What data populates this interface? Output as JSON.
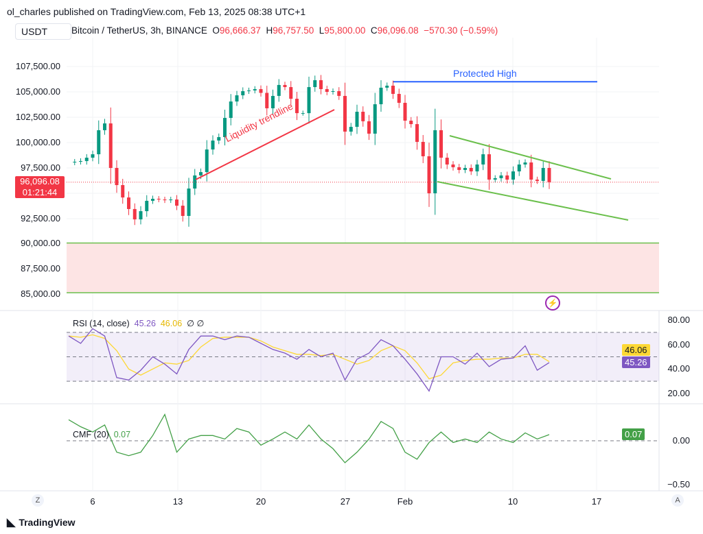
{
  "header": {
    "published": "ol_charles published on TradingView.com, Feb 13, 2025 08:38 UTC+1",
    "currency": "USDT",
    "symbol": "Bitcoin / TetherUS, 3h, BINANCE",
    "o_label": "O",
    "o": "96,666.37",
    "h_label": "H",
    "h": "96,757.50",
    "l_label": "L",
    "l": "95,800.00",
    "c_label": "C",
    "c": "96,096.08",
    "change": "−570.30 (−0.59%)"
  },
  "price_tag": {
    "price": "96,096.08",
    "countdown": "01:21:44"
  },
  "footer": {
    "logo": "TradingView",
    "z_button": "Z",
    "a_button": "A"
  },
  "colors": {
    "up": "#089981",
    "down": "#f23645",
    "rsi": "#7e57c2",
    "rsi_ma": "#fdd835",
    "cmf": "#43a047",
    "protected_high": "#2962ff",
    "trendline": "#f23645",
    "channel": "#6abf4b",
    "zone": "#fde4e4"
  },
  "chart_data": [
    {
      "type": "candlestick",
      "pane": "price",
      "ylim": [
        85000,
        110000
      ],
      "y_ticks": [
        "107,500.00",
        "105,000.00",
        "102,500.00",
        "100,000.00",
        "97,500.00",
        "92,500.00",
        "90,000.00",
        "87,500.00",
        "85,000.00"
      ],
      "x_ticks": [
        "6",
        "13",
        "20",
        "27",
        "Feb",
        "10",
        "17"
      ],
      "annotations": {
        "protected_high": {
          "label": "Protected High",
          "price": 106000
        },
        "trendline": {
          "label": "Liquidity trendline"
        },
        "support_zone": [
          85200,
          90100
        ],
        "channel": "descending"
      },
      "close": [
        [
          "2025-01-04 00:00",
          98040
        ],
        [
          "2025-01-04 12:00",
          98110
        ],
        [
          "2025-01-05 00:00",
          98180
        ],
        [
          "2025-01-05 12:00",
          98510
        ],
        [
          "2025-01-06 00:00",
          98850
        ],
        [
          "2025-01-06 12:00",
          101220
        ],
        [
          "2025-01-07 00:00",
          101890
        ],
        [
          "2025-01-07 12:00",
          97500
        ],
        [
          "2025-01-08 00:00",
          95810
        ],
        [
          "2025-01-08 12:00",
          94590
        ],
        [
          "2025-01-09 00:00",
          93450
        ],
        [
          "2025-01-09 12:00",
          92430
        ],
        [
          "2025-01-10 00:00",
          93240
        ],
        [
          "2025-01-10 12:00",
          94260
        ],
        [
          "2025-01-11 00:00",
          94460
        ],
        [
          "2025-01-11 12:00",
          94390
        ],
        [
          "2025-01-12 00:00",
          94320
        ],
        [
          "2025-01-12 12:00",
          94390
        ],
        [
          "2025-01-13 00:00",
          93780
        ],
        [
          "2025-01-13 12:00",
          92770
        ],
        [
          "2025-01-14 00:00",
          95470
        ],
        [
          "2025-01-14 12:00",
          96760
        ],
        [
          "2025-01-15 00:00",
          97090
        ],
        [
          "2025-01-15 12:00",
          99320
        ],
        [
          "2025-01-16 00:00",
          100200
        ],
        [
          "2025-01-16 12:00",
          100540
        ],
        [
          "2025-01-17 00:00",
          102430
        ],
        [
          "2025-01-17 12:00",
          104050
        ],
        [
          "2025-01-18 00:00",
          104660
        ],
        [
          "2025-01-18 12:00",
          105070
        ],
        [
          "2025-01-19 00:00",
          105140
        ],
        [
          "2025-01-19 12:00",
          105270
        ],
        [
          "2025-01-20 00:00",
          104900
        ],
        [
          "2025-01-20 12:00",
          103380
        ],
        [
          "2025-01-21 00:00",
          104600
        ],
        [
          "2025-01-21 12:00",
          105680
        ],
        [
          "2025-01-22 00:00",
          105470
        ],
        [
          "2025-01-22 12:00",
          104320
        ],
        [
          "2025-01-23 00:00",
          102900
        ],
        [
          "2025-01-23 12:00",
          102900
        ],
        [
          "2025-01-24 00:00",
          105470
        ],
        [
          "2025-01-24 12:00",
          106150
        ],
        [
          "2025-01-25 00:00",
          105270
        ],
        [
          "2025-01-25 12:00",
          105000
        ],
        [
          "2025-01-26 00:00",
          105070
        ],
        [
          "2025-01-26 12:00",
          104600
        ],
        [
          "2025-01-27 00:00",
          101080
        ],
        [
          "2025-01-27 12:00",
          101550
        ],
        [
          "2025-01-28 00:00",
          103040
        ],
        [
          "2025-01-28 12:00",
          102100
        ],
        [
          "2025-01-29 00:00",
          100880
        ],
        [
          "2025-01-29 12:00",
          103780
        ],
        [
          "2025-01-30 00:00",
          105410
        ],
        [
          "2025-01-30 12:00",
          105610
        ],
        [
          "2025-01-31 00:00",
          104800
        ],
        [
          "2025-01-31 12:00",
          103920
        ],
        [
          "2025-02-01 00:00",
          102160
        ],
        [
          "2025-02-01 12:00",
          101820
        ],
        [
          "2025-02-02 00:00",
          100070
        ],
        [
          "2025-02-02 12:00",
          98650
        ],
        [
          "2025-02-03 00:00",
          95000
        ],
        [
          "2025-02-03 12:00",
          101220
        ],
        [
          "2025-02-04 00:00",
          98510
        ],
        [
          "2025-02-04 12:00",
          97840
        ],
        [
          "2025-02-05 00:00",
          97570
        ],
        [
          "2025-02-05 12:00",
          97300
        ],
        [
          "2025-02-06 00:00",
          97500
        ],
        [
          "2025-02-06 12:00",
          97160
        ],
        [
          "2025-02-07 00:00",
          97840
        ],
        [
          "2025-02-07 12:00",
          98850
        ],
        [
          "2025-02-08 00:00",
          96350
        ],
        [
          "2025-02-08 12:00",
          96490
        ],
        [
          "2025-02-09 00:00",
          96760
        ],
        [
          "2025-02-09 12:00",
          96350
        ],
        [
          "2025-02-10 00:00",
          97160
        ],
        [
          "2025-02-10 12:00",
          97840
        ],
        [
          "2025-02-11 00:00",
          98040
        ],
        [
          "2025-02-11 12:00",
          96350
        ],
        [
          "2025-02-12 00:00",
          96220
        ],
        [
          "2025-02-12 12:00",
          97500
        ],
        [
          "2025-02-13 00:00",
          96096
        ]
      ]
    },
    {
      "type": "line",
      "pane": "rsi",
      "title": "RSI (14, close)",
      "ylim": [
        15,
        85
      ],
      "y_ticks": [
        "80.00",
        "60.00",
        "40.00",
        "20.00"
      ],
      "bands": [
        70,
        50,
        30
      ],
      "series": [
        {
          "name": "RSI",
          "last": "45.26",
          "values": [
            [
              "2025-01-04",
              67
            ],
            [
              "2025-01-05",
              61
            ],
            [
              "2025-01-06",
              73
            ],
            [
              "2025-01-07",
              67
            ],
            [
              "2025-01-08",
              33
            ],
            [
              "2025-01-09",
              31
            ],
            [
              "2025-01-10",
              39
            ],
            [
              "2025-01-11",
              50
            ],
            [
              "2025-01-12",
              44
            ],
            [
              "2025-01-13",
              36
            ],
            [
              "2025-01-14",
              56
            ],
            [
              "2025-01-15",
              67
            ],
            [
              "2025-01-16",
              67
            ],
            [
              "2025-01-17",
              64
            ],
            [
              "2025-01-18",
              67
            ],
            [
              "2025-01-19",
              66
            ],
            [
              "2025-01-20",
              61
            ],
            [
              "2025-01-21",
              56
            ],
            [
              "2025-01-22",
              53
            ],
            [
              "2025-01-23",
              48
            ],
            [
              "2025-01-24",
              56
            ],
            [
              "2025-01-25",
              50
            ],
            [
              "2025-01-26",
              53
            ],
            [
              "2025-01-27",
              31
            ],
            [
              "2025-01-28",
              48
            ],
            [
              "2025-01-29",
              53
            ],
            [
              "2025-01-30",
              64
            ],
            [
              "2025-01-31",
              59
            ],
            [
              "2025-02-01",
              48
            ],
            [
              "2025-02-02",
              36
            ],
            [
              "2025-02-03",
              22
            ],
            [
              "2025-02-04",
              50
            ],
            [
              "2025-02-05",
              50
            ],
            [
              "2025-02-06",
              44
            ],
            [
              "2025-02-07",
              53
            ],
            [
              "2025-02-08",
              42
            ],
            [
              "2025-02-09",
              48
            ],
            [
              "2025-02-10",
              49
            ],
            [
              "2025-02-11",
              59
            ],
            [
              "2025-02-12",
              39
            ],
            [
              "2025-02-13",
              45.26
            ]
          ]
        },
        {
          "name": "RSI MA",
          "last": "46.06",
          "values": [
            [
              "2025-01-04",
              67
            ],
            [
              "2025-01-05",
              66
            ],
            [
              "2025-01-06",
              68
            ],
            [
              "2025-01-07",
              65
            ],
            [
              "2025-01-08",
              55
            ],
            [
              "2025-01-09",
              40
            ],
            [
              "2025-01-10",
              35
            ],
            [
              "2025-01-11",
              40
            ],
            [
              "2025-01-12",
              45
            ],
            [
              "2025-01-13",
              44
            ],
            [
              "2025-01-14",
              47
            ],
            [
              "2025-01-15",
              58
            ],
            [
              "2025-01-16",
              65
            ],
            [
              "2025-01-17",
              66
            ],
            [
              "2025-01-18",
              66
            ],
            [
              "2025-01-19",
              66
            ],
            [
              "2025-01-20",
              63
            ],
            [
              "2025-01-21",
              58
            ],
            [
              "2025-01-22",
              55
            ],
            [
              "2025-01-23",
              52
            ],
            [
              "2025-01-24",
              52
            ],
            [
              "2025-01-25",
              51
            ],
            [
              "2025-01-26",
              52
            ],
            [
              "2025-01-27",
              48
            ],
            [
              "2025-01-28",
              44
            ],
            [
              "2025-01-29",
              47
            ],
            [
              "2025-01-30",
              55
            ],
            [
              "2025-01-31",
              59
            ],
            [
              "2025-02-01",
              55
            ],
            [
              "2025-02-02",
              45
            ],
            [
              "2025-02-03",
              32
            ],
            [
              "2025-02-04",
              35
            ],
            [
              "2025-02-05",
              45
            ],
            [
              "2025-02-06",
              47
            ],
            [
              "2025-02-07",
              48
            ],
            [
              "2025-02-08",
              48
            ],
            [
              "2025-02-09",
              49
            ],
            [
              "2025-02-10",
              49
            ],
            [
              "2025-02-11",
              52
            ],
            [
              "2025-02-12",
              52
            ],
            [
              "2025-02-13",
              46.06
            ]
          ]
        }
      ]
    },
    {
      "type": "line",
      "pane": "cmf",
      "title": "CMF (20)",
      "last": "0.07",
      "y_ticks": [
        "0.00",
        "−0.50"
      ],
      "values": [
        [
          "2025-01-04",
          0.24
        ],
        [
          "2025-01-05",
          0.16
        ],
        [
          "2025-01-06",
          0.1
        ],
        [
          "2025-01-07",
          0.18
        ],
        [
          "2025-01-08",
          -0.13
        ],
        [
          "2025-01-09",
          -0.17
        ],
        [
          "2025-01-10",
          -0.13
        ],
        [
          "2025-01-11",
          0.06
        ],
        [
          "2025-01-12",
          0.3
        ],
        [
          "2025-01-13",
          -0.13
        ],
        [
          "2025-01-14",
          0.02
        ],
        [
          "2025-01-15",
          0.06
        ],
        [
          "2025-01-16",
          0.06
        ],
        [
          "2025-01-17",
          0.02
        ],
        [
          "2025-01-18",
          0.14
        ],
        [
          "2025-01-19",
          0.1
        ],
        [
          "2025-01-20",
          -0.05
        ],
        [
          "2025-01-21",
          0.02
        ],
        [
          "2025-01-22",
          0.1
        ],
        [
          "2025-01-23",
          0.02
        ],
        [
          "2025-01-24",
          0.18
        ],
        [
          "2025-01-25",
          0.02
        ],
        [
          "2025-01-26",
          -0.09
        ],
        [
          "2025-01-27",
          -0.25
        ],
        [
          "2025-01-28",
          -0.13
        ],
        [
          "2025-01-29",
          0.02
        ],
        [
          "2025-01-30",
          0.22
        ],
        [
          "2025-01-31",
          0.14
        ],
        [
          "2025-02-01",
          -0.13
        ],
        [
          "2025-02-02",
          -0.21
        ],
        [
          "2025-02-03",
          -0.02
        ],
        [
          "2025-02-04",
          0.1
        ],
        [
          "2025-02-05",
          -0.02
        ],
        [
          "2025-02-06",
          0.02
        ],
        [
          "2025-02-07",
          -0.02
        ],
        [
          "2025-02-08",
          0.1
        ],
        [
          "2025-02-09",
          0.02
        ],
        [
          "2025-02-10",
          -0.02
        ],
        [
          "2025-02-11",
          0.09
        ],
        [
          "2025-02-12",
          0.02
        ],
        [
          "2025-02-13",
          0.07
        ]
      ]
    }
  ]
}
